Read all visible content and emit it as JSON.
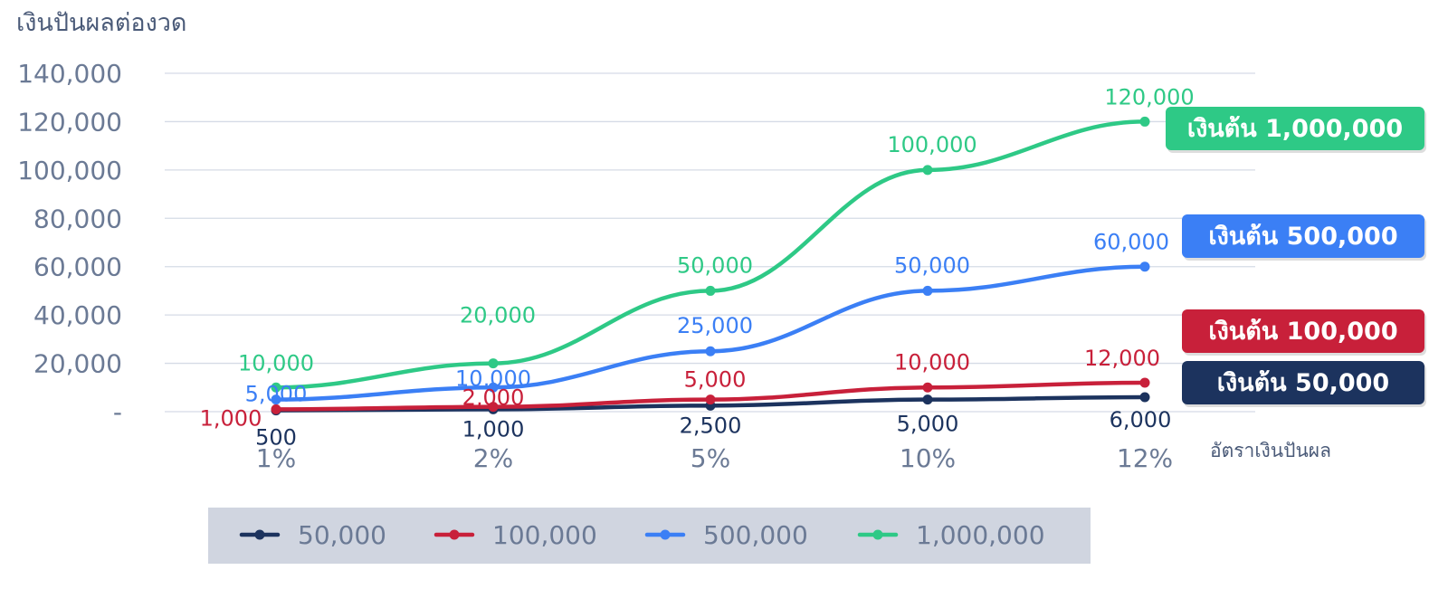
{
  "chart_data": {
    "type": "line",
    "ylabel": "เงินปันผลต่องวด",
    "xlabel": "อัตราเงินปันผล",
    "categories": [
      "1%",
      "2%",
      "5%",
      "10%",
      "12%"
    ],
    "ylim": [
      0,
      140000
    ],
    "yticks": [
      {
        "value": 0,
        "label": "-"
      },
      {
        "value": 20000,
        "label": "20,000"
      },
      {
        "value": 40000,
        "label": "40,000"
      },
      {
        "value": 60000,
        "label": "60,000"
      },
      {
        "value": 80000,
        "label": "80,000"
      },
      {
        "value": 100000,
        "label": "100,000"
      },
      {
        "value": 120000,
        "label": "120,000"
      },
      {
        "value": 140000,
        "label": "140,000"
      }
    ],
    "grid": true,
    "legend_position": "bottom",
    "series": [
      {
        "name": "50,000",
        "color": "#1c335e",
        "values": [
          500,
          1000,
          2500,
          5000,
          6000
        ],
        "labels": [
          "500",
          "1,000",
          "2,500",
          "5,000",
          "6,000"
        ],
        "tag": "เงินต้น 50,000"
      },
      {
        "name": "100,000",
        "color": "#c8203a",
        "values": [
          1000,
          2000,
          5000,
          10000,
          12000
        ],
        "labels": [
          "1,000",
          "2,000",
          "5,000",
          "10,000",
          "12,000"
        ],
        "tag": "เงินต้น 100,000"
      },
      {
        "name": "500,000",
        "color": "#3b7ff5",
        "values": [
          5000,
          10000,
          25000,
          50000,
          60000
        ],
        "labels": [
          "5,000",
          "10,000",
          "25,000",
          "50,000",
          "60,000"
        ],
        "tag": "เงินต้น 500,000"
      },
      {
        "name": "1,000,000",
        "color": "#2ec986",
        "values": [
          10000,
          20000,
          50000,
          100000,
          120000
        ],
        "labels": [
          "10,000",
          "20,000",
          "50,000",
          "100,000",
          "120,000"
        ],
        "tag": "เงินต้น 1,000,000"
      }
    ]
  }
}
